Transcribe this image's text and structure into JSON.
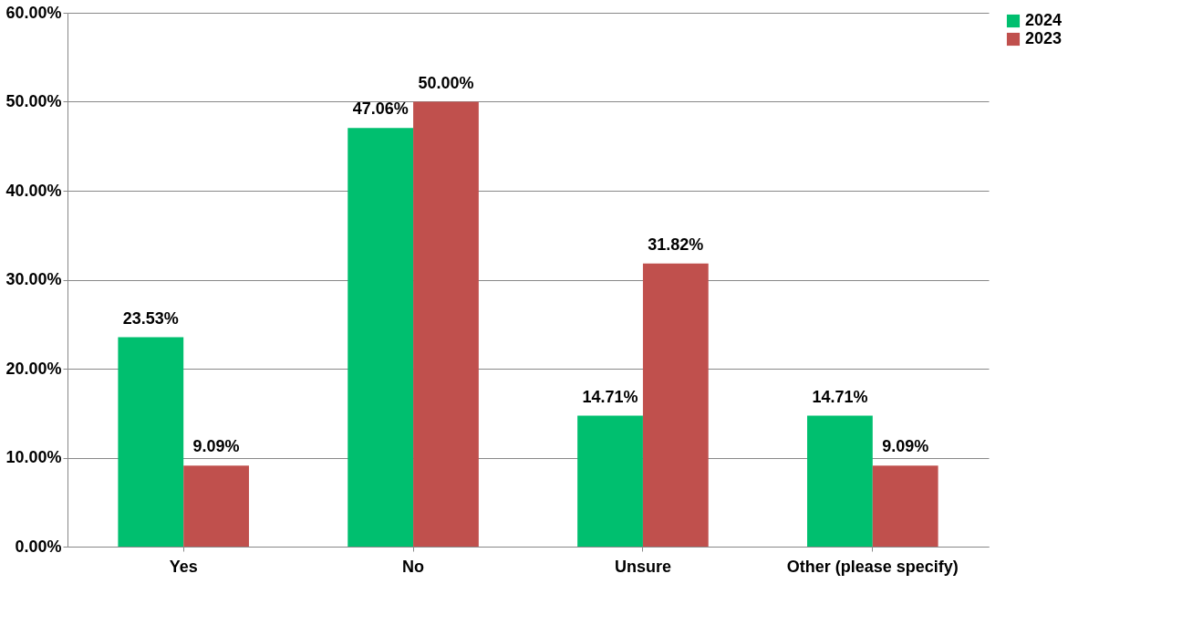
{
  "chart_data": {
    "type": "bar",
    "categories": [
      "Yes",
      "No",
      "Unsure",
      "Other (please specify)"
    ],
    "series": [
      {
        "name": "2024",
        "color": "#00bf6f",
        "values": [
          23.53,
          47.06,
          14.71,
          14.71
        ],
        "value_labels": [
          "23.53%",
          "47.06%",
          "14.71%",
          "14.71%"
        ]
      },
      {
        "name": "2023",
        "color": "#c0504d",
        "values": [
          9.09,
          50.0,
          31.82,
          9.09
        ],
        "value_labels": [
          "9.09%",
          "50.00%",
          "31.82%",
          "9.09%"
        ]
      }
    ],
    "ylim": [
      0,
      60
    ],
    "yticks": [
      {
        "value": 0,
        "label": "0.00%"
      },
      {
        "value": 10,
        "label": "10.00%"
      },
      {
        "value": 20,
        "label": "20.00%"
      },
      {
        "value": 30,
        "label": "30.00%"
      },
      {
        "value": 40,
        "label": "40.00%"
      },
      {
        "value": 50,
        "label": "50.00%"
      },
      {
        "value": 60,
        "label": "60.00%"
      }
    ],
    "grid": "y",
    "legend": "right"
  }
}
